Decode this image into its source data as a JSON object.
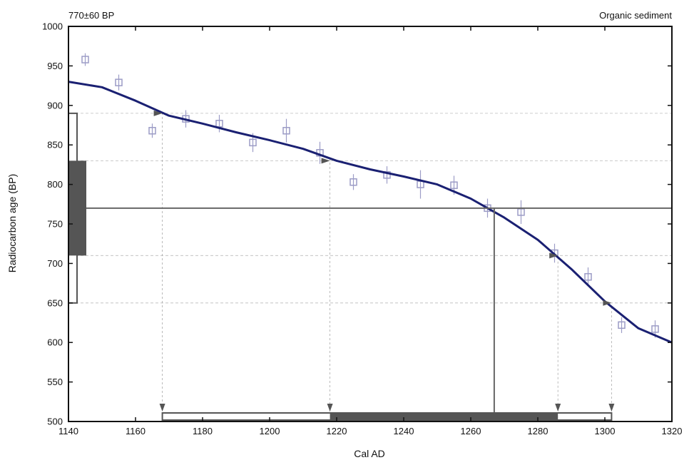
{
  "chart_data": {
    "type": "scatter",
    "header_left": "770±60 BP",
    "header_right": "Organic sediment",
    "xlabel": "Cal AD",
    "ylabel": "Radiocarbon age (BP)",
    "xlim": [
      1140,
      1320
    ],
    "ylim": [
      500,
      1000
    ],
    "x_ticks": [
      1140,
      1160,
      1180,
      1200,
      1220,
      1240,
      1260,
      1280,
      1300,
      1320
    ],
    "y_ticks": [
      500,
      550,
      600,
      650,
      700,
      750,
      800,
      850,
      900,
      950,
      1000
    ],
    "grid": false,
    "curve": {
      "x": [
        1140,
        1150,
        1160,
        1170,
        1180,
        1190,
        1200,
        1210,
        1220,
        1230,
        1240,
        1250,
        1260,
        1265,
        1270,
        1280,
        1290,
        1300,
        1310,
        1320
      ],
      "y": [
        930,
        923,
        906,
        887,
        877,
        866,
        856,
        845,
        830,
        819,
        810,
        800,
        782,
        770,
        758,
        730,
        693,
        652,
        618,
        600
      ]
    },
    "calibration_points": {
      "x": [
        1145,
        1155,
        1165,
        1175,
        1185,
        1195,
        1205,
        1215,
        1225,
        1235,
        1245,
        1255,
        1265,
        1275,
        1285,
        1295,
        1305,
        1315
      ],
      "y": [
        958,
        929,
        868,
        883,
        877,
        853,
        868,
        840,
        803,
        812,
        800,
        799,
        770,
        765,
        713,
        683,
        622,
        617
      ],
      "err": [
        8,
        10,
        9,
        11,
        11,
        12,
        15,
        14,
        10,
        11,
        18,
        12,
        12,
        15,
        12,
        12,
        10,
        11
      ]
    },
    "sample": {
      "age": 770,
      "sigma1": [
        710,
        830
      ],
      "sigma2": [
        650,
        890
      ],
      "intercept_x": 1267
    },
    "calibrated_ranges": {
      "two_sigma": [
        1168,
        1302
      ],
      "one_sigma": [
        1218,
        1286
      ],
      "tick_marks": [
        1168,
        1218,
        1286,
        1302
      ]
    },
    "colors": {
      "curve": "#1a2072",
      "points": "#9c9cc6",
      "bars": "#555555",
      "guides": "#aaaaaa"
    }
  }
}
